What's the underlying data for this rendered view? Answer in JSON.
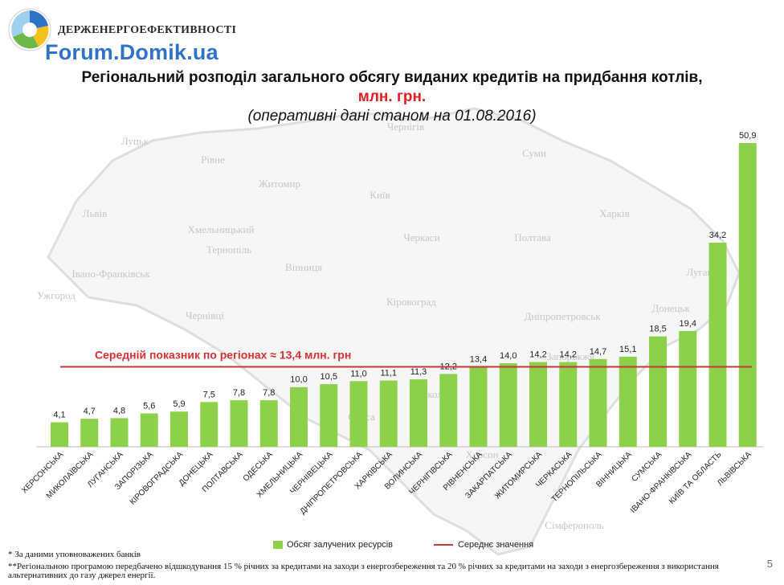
{
  "header": {
    "agency": "ДЕРЖЕНЕРГОЕФЕКТИВНОСТІ",
    "site": "Forum.Domik.ua"
  },
  "title": {
    "line1": "Регіональний розподіл загального обсягу виданих кредитів на придбання котлів,",
    "line2": "млн. грн.",
    "line3": "(оперативні дані станом на 01.08.2016)"
  },
  "colors": {
    "bar": "#8dd14b",
    "average_line": "#c0393b",
    "accent_red": "#e02020",
    "site_blue": "#2f73c9"
  },
  "map_labels": [
    "Луцьк",
    "Рівне",
    "Житомир",
    "Київ",
    "Чернігів",
    "Суми",
    "Львів",
    "Хмельницький",
    "Тернопіль",
    "Івано-Франківськ",
    "Ужгород",
    "Вінниця",
    "Черкаси",
    "Полтава",
    "Харків",
    "Чернівці",
    "Кіровоград",
    "Дніпропетровськ",
    "Донецьк",
    "Луганськ",
    "Запоріжжя",
    "Одеса",
    "Миколаїв",
    "Херсон",
    "Сімферополь"
  ],
  "chart_data": {
    "type": "bar",
    "categories": [
      "ХЕРСОНСЬКА",
      "МИКОЛАЇВСЬКА",
      "ЛУГАНСЬКА",
      "ЗАПОРІЗЬКА",
      "КІРОВОГРАДСЬКА",
      "ДОНЕЦЬКА",
      "ПОЛТАВСЬКА",
      "ОДЕСЬКА",
      "ХМЕЛЬНИЦЬКА",
      "ЧЕРНІВЕЦЬКА",
      "ДНІПРОПЕТРОВСЬКА",
      "ХАРКІВСЬКА",
      "ВОЛИНСЬКА",
      "ЧЕРНІГІВСЬКА",
      "РІВНЕНСЬКА",
      "ЗАКАРПАТСЬКА",
      "ЖИТОМИРСЬКА",
      "ЧЕРКАСЬКА",
      "ТЕРНОПІЛЬСЬКА",
      "ВІННИЦЬКА",
      "СУМСЬКА",
      "ІВАНО-ФРАНКІВСЬКА",
      "КИЇВ ТА ОБЛАСТЬ",
      "ЛЬВІВСЬКА"
    ],
    "values": [
      4.1,
      4.7,
      4.8,
      5.6,
      5.9,
      7.5,
      7.8,
      7.8,
      10.0,
      10.5,
      11.0,
      11.1,
      11.3,
      12.2,
      13.4,
      14.0,
      14.2,
      14.2,
      14.7,
      15.1,
      18.5,
      19.4,
      34.2,
      50.9
    ],
    "value_labels": [
      "4,1",
      "4,7",
      "4,8",
      "5,6",
      "5,9",
      "7,5",
      "7,8",
      "7,8",
      "10,0",
      "10,5",
      "11,0",
      "11,1",
      "11,3",
      "12,2",
      "13,4",
      "14,0",
      "14,2",
      "14,2",
      "14,7",
      "15,1",
      "18,5",
      "19,4",
      "34,2",
      "50,9"
    ],
    "average": 13.4,
    "average_label": "Середній показник по регіонах ≈ 13,4 млн. грн",
    "legend": [
      "Обсяг залучених ресурсів",
      "Середнє значення"
    ],
    "ylim": [
      0,
      50.9
    ]
  },
  "footnotes": {
    "note1": "* За даними уповноважених банків",
    "note2": "**Регіональною програмою передбачено відшкодування 15 % річних за кредитами на заходи з енергозбереження та 20 % річних за кредитами на заходи з енергозбереження з використання альтернативних до газу джерел енергії."
  },
  "page_number": "5"
}
